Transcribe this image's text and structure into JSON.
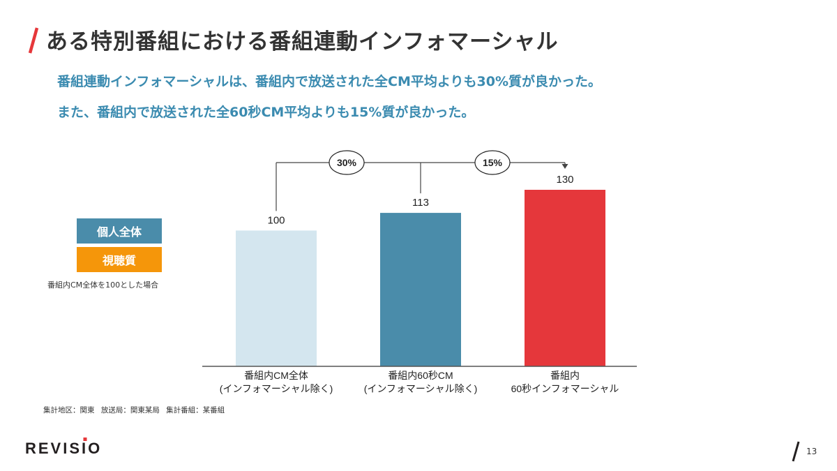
{
  "title": "ある特別番組における番組連動インフォマーシャル",
  "subtitle_lines": [
    "番組連動インフォマーシャルは、番組内で放送された全CM平均よりも30%質が良かった。",
    "また、番組内で放送された全60秒CM平均よりも15%質が良かった。"
  ],
  "legend": {
    "items": [
      {
        "label": "個人全体",
        "color": "#4a8caa"
      },
      {
        "label": "視聴質",
        "color": "#f5960a"
      }
    ],
    "note": "番組内CM全体を100とした場合"
  },
  "chart_data": {
    "type": "bar",
    "categories": [
      [
        "番組内CM全体",
        "(インフォマーシャル除く)"
      ],
      [
        "番組内60秒CM",
        "(インフォマーシャル除く)"
      ],
      [
        "番組内",
        "60秒インフォマーシャル"
      ]
    ],
    "values": [
      100,
      113,
      130
    ],
    "value_labels": [
      "100",
      "113",
      "130"
    ],
    "bar_colors": [
      "#d4e6ef",
      "#4a8caa",
      "#e5373b"
    ],
    "comparisons": [
      {
        "label": "30%",
        "from_index": 0,
        "to_index": 2
      },
      {
        "label": "15%",
        "from_index": 1,
        "to_index": 2
      }
    ],
    "ylim": [
      0,
      130
    ],
    "grid": false,
    "axis_color": "#555555"
  },
  "footnote": "集計地区：関東 放送局：関東某局 集計番組：某番組",
  "footer": {
    "logo": "REVISIO",
    "page_number": "13",
    "accent_color": "#e6373a"
  }
}
